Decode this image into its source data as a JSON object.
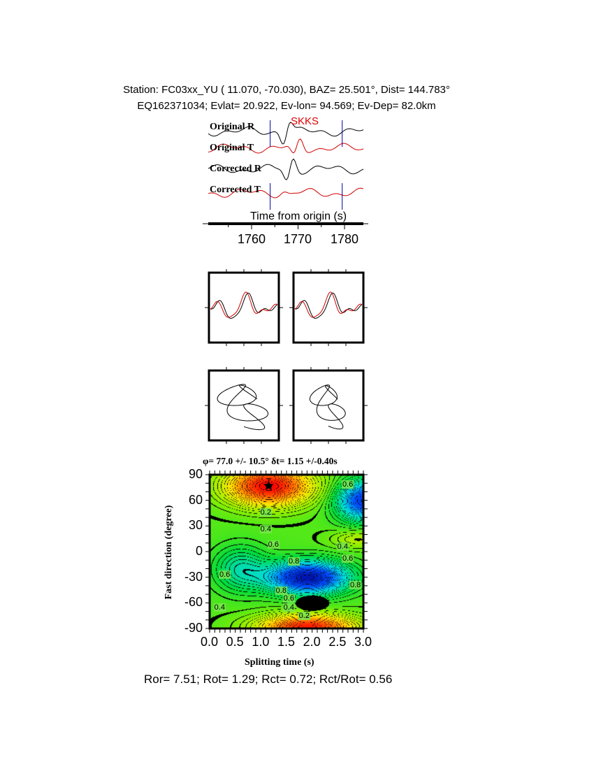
{
  "header": {
    "station_line": "Station: FC03xx_YU (  11.070,  -70.030), BAZ=   25.501°, Dist=  144.783°",
    "event_line": "EQ162371034; Evlat=  20.922, Ev-lon=  94.569; Ev-Dep= 82.0km"
  },
  "chart_data": [
    {
      "type": "line",
      "phase": "SKKS",
      "traces": [
        "Original R",
        "Original T",
        "Corrected R",
        "Corrected T"
      ],
      "trace_colors": {
        "R": "#000000",
        "T": "#d00000"
      },
      "window_markers_s": [
        1764,
        1779.5
      ],
      "xlabel": "Time from origin (s)",
      "xticks": [
        "1760",
        "1770",
        "1780"
      ],
      "xlim": [
        1751,
        1785
      ]
    },
    {
      "type": "line",
      "description_panels": [
        "waveform-overlay-original",
        "waveform-overlay-corrected"
      ]
    },
    {
      "type": "line",
      "description_panels": [
        "particle-motion-original",
        "particle-motion-corrected"
      ]
    },
    {
      "type": "heatmap",
      "title": "φ= 77.0 +/- 10.5° δt= 1.15 +/-0.40s",
      "xlabel": "Splitting time (s)",
      "ylabel": "Fast direction (degree)",
      "xlim": [
        0,
        3
      ],
      "ylim": [
        -90,
        90
      ],
      "xticks": [
        "0.0",
        "0.5",
        "1.0",
        "1.5",
        "2.0",
        "2.5",
        "3.0"
      ],
      "yticks": [
        "90",
        "60",
        "30",
        "0",
        "-30",
        "-60",
        "-90"
      ],
      "best_fit": {
        "dt": 1.15,
        "phi": 77.0
      },
      "contour_labels": [
        {
          "text": "0.2",
          "x": 1.1,
          "y": 45
        },
        {
          "text": "0.4",
          "x": 1.1,
          "y": 25
        },
        {
          "text": "0.6",
          "x": 1.25,
          "y": 7
        },
        {
          "text": "0.8",
          "x": 1.65,
          "y": -12
        },
        {
          "text": "0.8",
          "x": 1.4,
          "y": -47
        },
        {
          "text": "0.6",
          "x": 1.55,
          "y": -56
        },
        {
          "text": "0.4",
          "x": 1.55,
          "y": -66
        },
        {
          "text": "0.2",
          "x": 1.85,
          "y": -76
        },
        {
          "text": "0.4",
          "x": 0.2,
          "y": -66
        },
        {
          "text": "0.4",
          "x": 2.6,
          "y": 5
        },
        {
          "text": "0.6",
          "x": 2.7,
          "y": -9
        },
        {
          "text": "0.6",
          "x": 2.7,
          "y": 78
        },
        {
          "text": "0.8",
          "x": 2.85,
          "y": -40
        },
        {
          "text": "0.6",
          "x": 0.3,
          "y": -28
        }
      ]
    }
  ],
  "footer": "Ror= 7.51; Rot= 1.29; Rct= 0.72; Rct/Rot= 0.56"
}
